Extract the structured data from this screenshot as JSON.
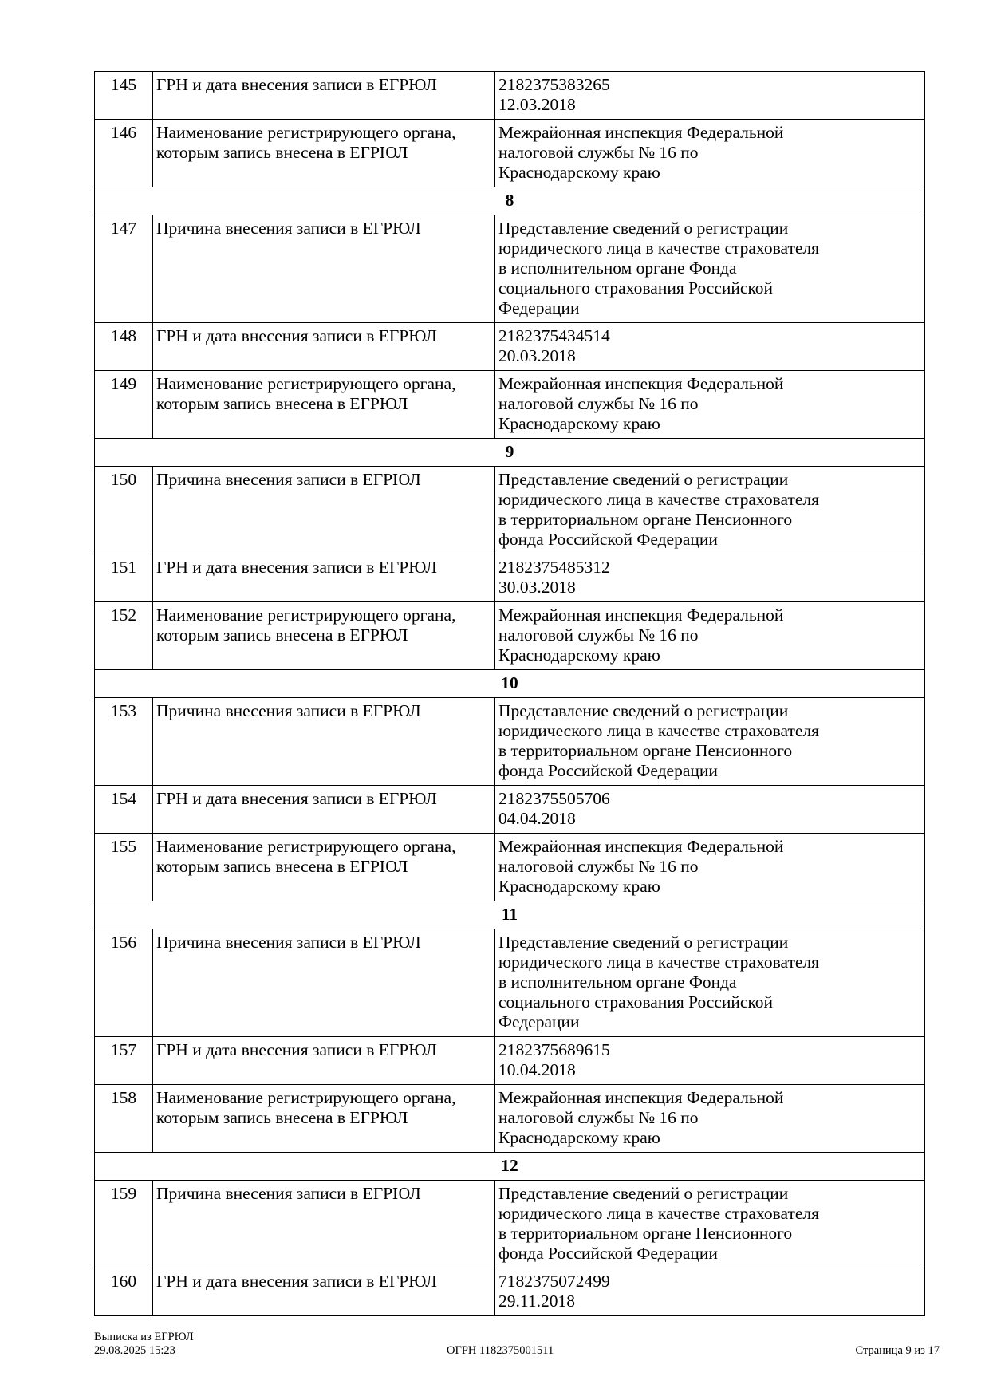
{
  "rows": [
    {
      "num": "145",
      "label": [
        "ГРН и дата внесения записи в ЕГРЮЛ"
      ],
      "value": [
        "2182375383265",
        "12.03.2018"
      ]
    },
    {
      "num": "146",
      "label": [
        "Наименование регистрирующего органа,",
        "которым запись внесена в ЕГРЮЛ"
      ],
      "value": [
        "Межрайонная инспекция Федеральной",
        "налоговой службы № 16 по",
        "Краснодарскому краю"
      ]
    },
    {
      "section": "8"
    },
    {
      "num": "147",
      "label": [
        "Причина внесения записи в ЕГРЮЛ"
      ],
      "value": [
        "Представление сведений о регистрации",
        "юридического лица в качестве страхователя",
        "в исполнительном органе Фонда",
        "социального страхования Российской",
        "Федерации"
      ]
    },
    {
      "num": "148",
      "label": [
        "ГРН и дата внесения записи в ЕГРЮЛ"
      ],
      "value": [
        "2182375434514",
        "20.03.2018"
      ]
    },
    {
      "num": "149",
      "label": [
        "Наименование регистрирующего органа,",
        "которым запись внесена в ЕГРЮЛ"
      ],
      "value": [
        "Межрайонная инспекция Федеральной",
        "налоговой службы № 16 по",
        "Краснодарскому краю"
      ]
    },
    {
      "section": "9"
    },
    {
      "num": "150",
      "label": [
        "Причина внесения записи в ЕГРЮЛ"
      ],
      "value": [
        "Представление сведений о регистрации",
        "юридического лица в качестве страхователя",
        "в территориальном органе Пенсионного",
        "фонда Российской Федерации"
      ]
    },
    {
      "num": "151",
      "label": [
        "ГРН и дата внесения записи в ЕГРЮЛ"
      ],
      "value": [
        "2182375485312",
        "30.03.2018"
      ]
    },
    {
      "num": "152",
      "label": [
        "Наименование регистрирующего органа,",
        "которым запись внесена в ЕГРЮЛ"
      ],
      "value": [
        "Межрайонная инспекция Федеральной",
        "налоговой службы № 16 по",
        "Краснодарскому краю"
      ]
    },
    {
      "section": "10"
    },
    {
      "num": "153",
      "label": [
        "Причина внесения записи в ЕГРЮЛ"
      ],
      "value": [
        "Представление сведений о регистрации",
        "юридического лица в качестве страхователя",
        "в территориальном органе Пенсионного",
        "фонда Российской Федерации"
      ]
    },
    {
      "num": "154",
      "label": [
        "ГРН и дата внесения записи в ЕГРЮЛ"
      ],
      "value": [
        "2182375505706",
        "04.04.2018"
      ]
    },
    {
      "num": "155",
      "label": [
        "Наименование регистрирующего органа,",
        "которым запись внесена в ЕГРЮЛ"
      ],
      "value": [
        "Межрайонная инспекция Федеральной",
        "налоговой службы № 16 по",
        "Краснодарскому краю"
      ]
    },
    {
      "section": "11"
    },
    {
      "num": "156",
      "label": [
        "Причина внесения записи в ЕГРЮЛ"
      ],
      "value": [
        "Представление сведений о регистрации",
        "юридического лица в качестве страхователя",
        "в исполнительном органе Фонда",
        "социального страхования Российской",
        "Федерации"
      ]
    },
    {
      "num": "157",
      "label": [
        "ГРН и дата внесения записи в ЕГРЮЛ"
      ],
      "value": [
        "2182375689615",
        "10.04.2018"
      ]
    },
    {
      "num": "158",
      "label": [
        "Наименование регистрирующего органа,",
        "которым запись внесена в ЕГРЮЛ"
      ],
      "value": [
        "Межрайонная инспекция Федеральной",
        "налоговой службы № 16 по",
        "Краснодарскому краю"
      ]
    },
    {
      "section": "12"
    },
    {
      "num": "159",
      "label": [
        "Причина внесения записи в ЕГРЮЛ"
      ],
      "value": [
        "Представление сведений о регистрации",
        "юридического лица в качестве страхователя",
        "в территориальном органе Пенсионного",
        "фонда Российской Федерации"
      ]
    },
    {
      "num": "160",
      "label": [
        "ГРН и дата внесения записи в ЕГРЮЛ"
      ],
      "value": [
        "7182375072499",
        "29.11.2018"
      ]
    }
  ],
  "footer": {
    "doc_title": "Выписка из ЕГРЮЛ",
    "datetime": "29.08.2025 15:23",
    "ogrn": "ОГРН 1182375001511",
    "page": "Страница 9 из 17"
  }
}
